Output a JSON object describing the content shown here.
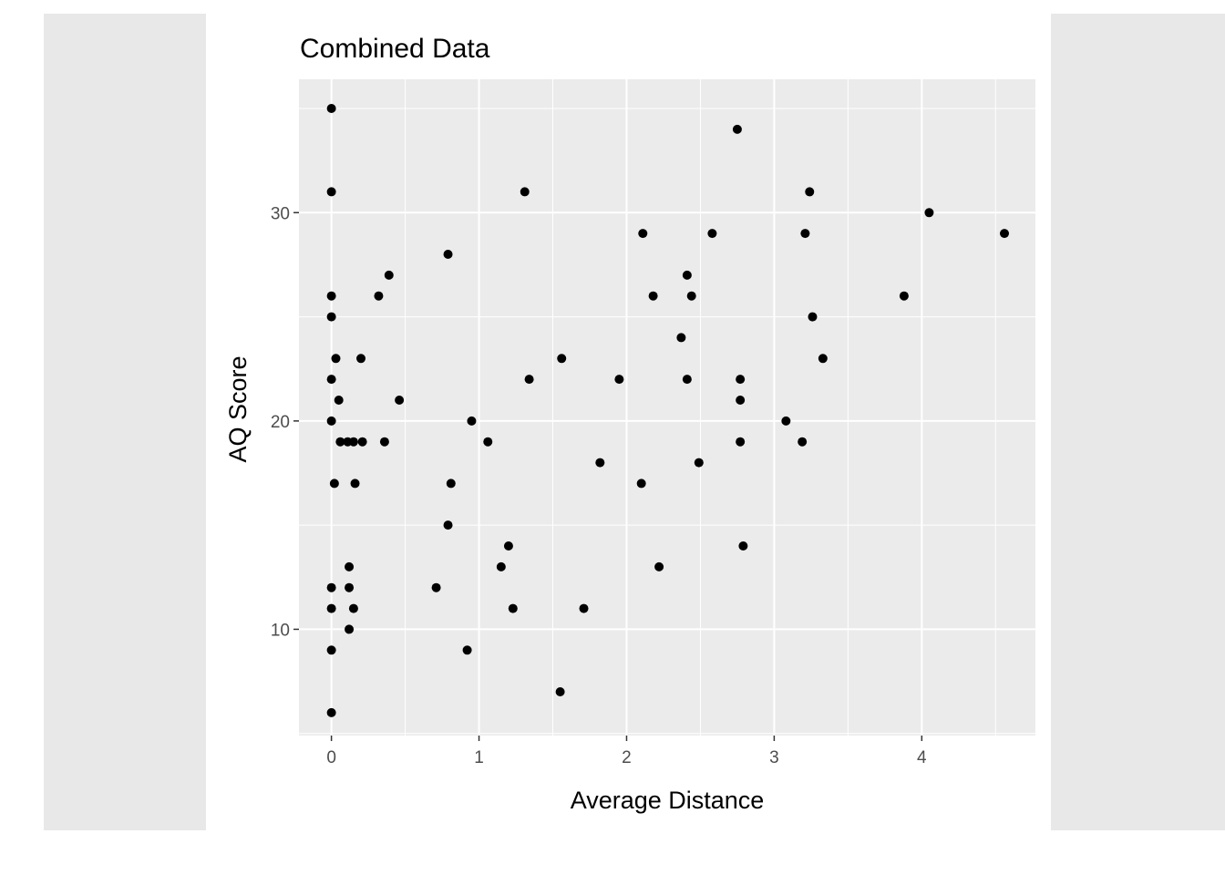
{
  "chart_data": {
    "type": "scatter",
    "title": "Combined Data",
    "xlabel": "Average Distance",
    "ylabel": "AQ Score",
    "xlim": [
      -0.22,
      4.77
    ],
    "ylim": [
      4.9,
      36.4
    ],
    "xticks": [
      0,
      1,
      2,
      3,
      4
    ],
    "yticks": [
      10,
      20,
      30
    ],
    "grid": true,
    "legend": "none",
    "point_color": "#000000",
    "panel_color": "#ebebeb",
    "grid_color": "#ffffff",
    "series": [
      {
        "points": [
          [
            0.0,
            35
          ],
          [
            0.0,
            31
          ],
          [
            0.0,
            26
          ],
          [
            0.0,
            25
          ],
          [
            0.0,
            22
          ],
          [
            0.0,
            20
          ],
          [
            0.02,
            17
          ],
          [
            0.0,
            12
          ],
          [
            0.0,
            11
          ],
          [
            0.0,
            9
          ],
          [
            0.0,
            6
          ],
          [
            0.03,
            23
          ],
          [
            0.05,
            21
          ],
          [
            0.06,
            19
          ],
          [
            0.11,
            19
          ],
          [
            0.15,
            19
          ],
          [
            0.21,
            19
          ],
          [
            0.16,
            17
          ],
          [
            0.12,
            13
          ],
          [
            0.12,
            12
          ],
          [
            0.15,
            11
          ],
          [
            0.12,
            10
          ],
          [
            0.2,
            23
          ],
          [
            0.32,
            26
          ],
          [
            0.36,
            19
          ],
          [
            0.39,
            27
          ],
          [
            0.46,
            21
          ],
          [
            0.71,
            12
          ],
          [
            0.79,
            28
          ],
          [
            0.79,
            15
          ],
          [
            0.81,
            17
          ],
          [
            0.92,
            9
          ],
          [
            0.95,
            20
          ],
          [
            1.06,
            19
          ],
          [
            1.15,
            13
          ],
          [
            1.2,
            14
          ],
          [
            1.23,
            11
          ],
          [
            1.31,
            31
          ],
          [
            1.34,
            22
          ],
          [
            1.55,
            7
          ],
          [
            1.56,
            23
          ],
          [
            1.71,
            11
          ],
          [
            1.82,
            18
          ],
          [
            1.95,
            22
          ],
          [
            2.1,
            17
          ],
          [
            2.11,
            29
          ],
          [
            2.18,
            26
          ],
          [
            2.22,
            13
          ],
          [
            2.37,
            24
          ],
          [
            2.41,
            27
          ],
          [
            2.41,
            22
          ],
          [
            2.44,
            26
          ],
          [
            2.49,
            18
          ],
          [
            2.58,
            29
          ],
          [
            2.75,
            34
          ],
          [
            2.77,
            22
          ],
          [
            2.77,
            21
          ],
          [
            2.77,
            19
          ],
          [
            2.79,
            14
          ],
          [
            3.08,
            20
          ],
          [
            3.19,
            19
          ],
          [
            3.21,
            29
          ],
          [
            3.24,
            31
          ],
          [
            3.26,
            25
          ],
          [
            3.33,
            23
          ],
          [
            3.88,
            26
          ],
          [
            4.05,
            30
          ],
          [
            4.56,
            29
          ]
        ]
      }
    ]
  }
}
